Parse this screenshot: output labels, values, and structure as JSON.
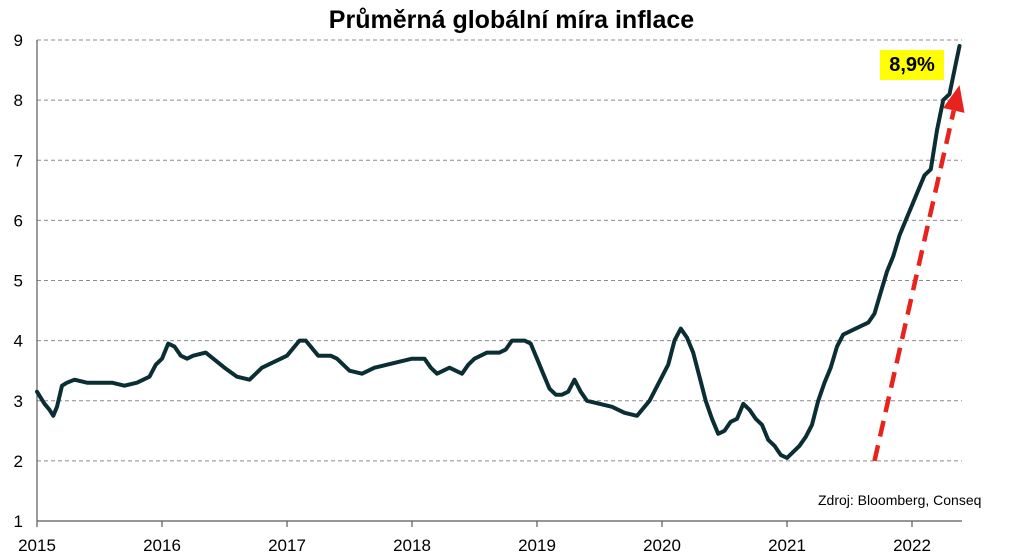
{
  "chart_data": {
    "type": "line",
    "title": "Průměrná globální míra inflace",
    "xlabel": "",
    "ylabel": "",
    "xlim": [
      2015.0,
      2022.4
    ],
    "ylim": [
      1,
      9
    ],
    "x_ticks": [
      "2015",
      "2016",
      "2017",
      "2018",
      "2019",
      "2020",
      "2021",
      "2022"
    ],
    "y_ticks": [
      "1",
      "2",
      "3",
      "4",
      "5",
      "6",
      "7",
      "8",
      "9"
    ],
    "grid": "horizontal dashed",
    "line_color": "#0b2e35",
    "series": [
      {
        "x": [
          2015.0,
          2015.03,
          2015.06,
          2015.1,
          2015.13,
          2015.16,
          2015.2,
          2015.24,
          2015.3,
          2015.4,
          2015.5,
          2015.6,
          2015.7,
          2015.8,
          2015.9,
          2015.95,
          2016.0,
          2016.05,
          2016.1,
          2016.15,
          2016.2,
          2016.25,
          2016.35,
          2016.5,
          2016.6,
          2016.7,
          2016.8,
          2016.9,
          2016.95,
          2017.0,
          2017.1,
          2017.15,
          2017.25,
          2017.35,
          2017.4,
          2017.5,
          2017.6,
          2017.7,
          2017.8,
          2017.9,
          2018.0,
          2018.1,
          2018.15,
          2018.2,
          2018.3,
          2018.4,
          2018.45,
          2018.5,
          2018.6,
          2018.7,
          2018.75,
          2018.8,
          2018.9,
          2018.95,
          2019.0,
          2019.05,
          2019.1,
          2019.15,
          2019.2,
          2019.25,
          2019.3,
          2019.35,
          2019.4,
          2019.5,
          2019.6,
          2019.7,
          2019.8,
          2019.9,
          2020.0,
          2020.05,
          2020.1,
          2020.15,
          2020.2,
          2020.25,
          2020.3,
          2020.35,
          2020.4,
          2020.45,
          2020.5,
          2020.55,
          2020.6,
          2020.65,
          2020.7,
          2020.75,
          2020.8,
          2020.85,
          2020.9,
          2020.95,
          2021.0,
          2021.05,
          2021.1,
          2021.15,
          2021.2,
          2021.25,
          2021.3,
          2021.35,
          2021.4,
          2021.45,
          2021.5,
          2021.55,
          2021.6,
          2021.65,
          2021.7,
          2021.75,
          2021.8,
          2021.85,
          2021.9,
          2021.95,
          2022.0,
          2022.05,
          2022.1,
          2022.15,
          2022.2,
          2022.25,
          2022.3,
          2022.35,
          2022.38
        ],
        "values": [
          3.15,
          3.05,
          2.95,
          2.85,
          2.75,
          2.9,
          3.25,
          3.3,
          3.35,
          3.3,
          3.3,
          3.3,
          3.25,
          3.3,
          3.4,
          3.6,
          3.7,
          3.95,
          3.9,
          3.75,
          3.7,
          3.75,
          3.8,
          3.55,
          3.4,
          3.35,
          3.55,
          3.65,
          3.7,
          3.75,
          4.0,
          4.0,
          3.75,
          3.75,
          3.7,
          3.5,
          3.45,
          3.55,
          3.6,
          3.65,
          3.7,
          3.7,
          3.55,
          3.45,
          3.55,
          3.45,
          3.6,
          3.7,
          3.8,
          3.8,
          3.85,
          4.0,
          4.0,
          3.95,
          3.7,
          3.45,
          3.2,
          3.1,
          3.1,
          3.15,
          3.35,
          3.15,
          3.0,
          2.95,
          2.9,
          2.8,
          2.75,
          3.0,
          3.4,
          3.6,
          4.0,
          4.2,
          4.05,
          3.8,
          3.4,
          3.0,
          2.7,
          2.45,
          2.5,
          2.65,
          2.7,
          2.95,
          2.85,
          2.7,
          2.6,
          2.35,
          2.25,
          2.1,
          2.05,
          2.15,
          2.25,
          2.4,
          2.6,
          3.0,
          3.3,
          3.55,
          3.9,
          4.1,
          4.15,
          4.2,
          4.25,
          4.3,
          4.45,
          4.8,
          5.15,
          5.4,
          5.75,
          6.0,
          6.25,
          6.5,
          6.75,
          6.85,
          7.5,
          8.0,
          8.1,
          8.6,
          8.9
        ]
      }
    ],
    "annotations": [
      {
        "text": "8,9%",
        "style": "yellow label near last point"
      },
      {
        "text": "Zdroj: Bloomberg, Conseq",
        "style": "source note"
      }
    ],
    "arrow": {
      "color": "#e8221c",
      "style": "dashed, pointing up-right",
      "from": [
        2021.7,
        2.0
      ],
      "to": [
        2022.38,
        8.25
      ]
    }
  }
}
